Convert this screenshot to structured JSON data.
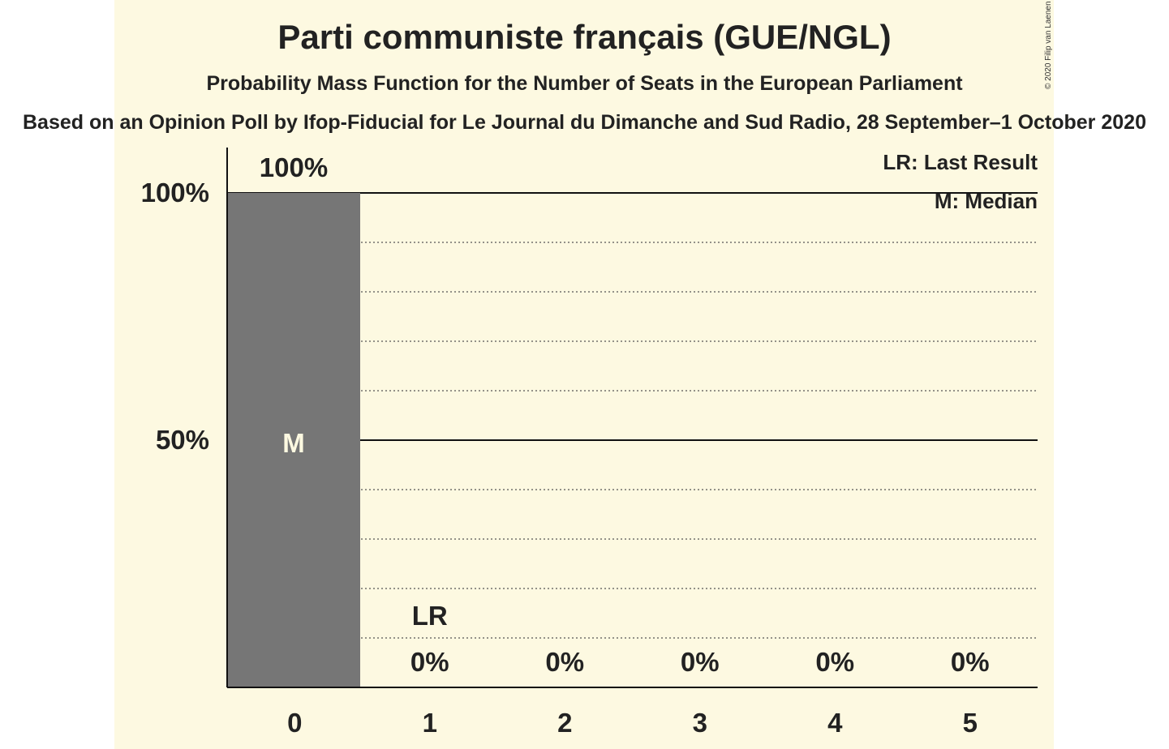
{
  "title": "Parti communiste français (GUE/NGL)",
  "subtitle": "Probability Mass Function for the Number of Seats in the European Parliament",
  "subtitle2": "Based on an Opinion Poll by Ifop-Fiducial for Le Journal du Dimanche and Sud Radio, 28 September–1 October 2020",
  "copyright": "© 2020 Filip van Laenen",
  "colors": {
    "background": "#fdf9e1",
    "bar": "#767676",
    "text": "#222222",
    "median_label": "#fdf9e1"
  },
  "chart_data": {
    "type": "bar",
    "categories": [
      "0",
      "1",
      "2",
      "3",
      "4",
      "5"
    ],
    "values": [
      100,
      0,
      0,
      0,
      0,
      0
    ],
    "value_labels": [
      "100%",
      "0%",
      "0%",
      "0%",
      "0%",
      "0%"
    ],
    "ylim": [
      0,
      100
    ],
    "yticks": [
      {
        "value": 50,
        "label": "50%"
      },
      {
        "value": 100,
        "label": "100%"
      }
    ],
    "grid_minor_step": 10,
    "median_index": 0,
    "median_marker": "M",
    "last_result_index": 1,
    "last_result_marker": "LR",
    "legend": [
      "LR: Last Result",
      "M: Median"
    ],
    "legend_position": "top-right"
  }
}
